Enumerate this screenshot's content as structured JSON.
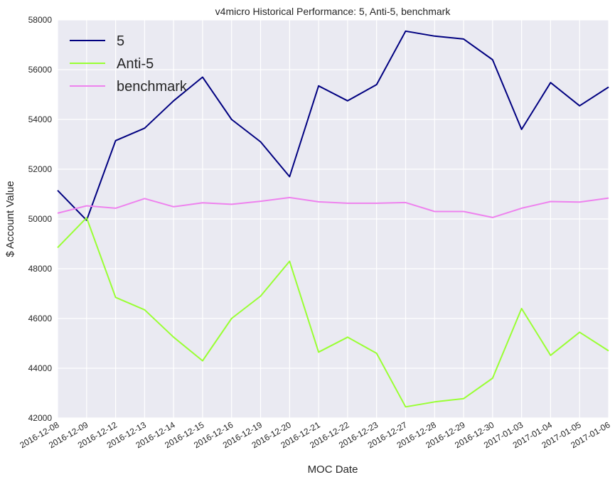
{
  "chart_data": {
    "type": "line",
    "title": "v4micro Historical Performance: 5, Anti-5, benchmark",
    "xlabel": "MOC Date",
    "ylabel": "$ Account Value",
    "ylim": [
      42000,
      58000
    ],
    "yticks": [
      "42000",
      "44000",
      "46000",
      "48000",
      "50000",
      "52000",
      "54000",
      "56000",
      "58000"
    ],
    "categories": [
      "2016-12-08",
      "2016-12-09",
      "2016-12-12",
      "2016-12-13",
      "2016-12-14",
      "2016-12-15",
      "2016-12-16",
      "2016-12-19",
      "2016-12-20",
      "2016-12-21",
      "2016-12-22",
      "2016-12-23",
      "2016-12-27",
      "2016-12-28",
      "2016-12-29",
      "2016-12-30",
      "2017-01-03",
      "2017-01-04",
      "2017-01-05",
      "2017-01-06"
    ],
    "grid": true,
    "legend_position": "top-left",
    "series": [
      {
        "name": "5",
        "color": "#000080",
        "values": [
          51150,
          49950,
          53150,
          53650,
          54750,
          55700,
          54000,
          53100,
          51700,
          55350,
          54750,
          55400,
          57550,
          57350,
          57230,
          56400,
          53600,
          55480,
          54550,
          55300
        ]
      },
      {
        "name": "Anti-5",
        "color": "#99ff33",
        "values": [
          48850,
          50050,
          46850,
          46350,
          45250,
          44300,
          46000,
          46900,
          48300,
          44650,
          45250,
          44600,
          42450,
          42650,
          42780,
          43600,
          46400,
          44520,
          45450,
          44700
        ]
      },
      {
        "name": "benchmark",
        "color": "#ee82ee",
        "values": [
          50230,
          50530,
          50430,
          50820,
          50490,
          50650,
          50590,
          50710,
          50860,
          50690,
          50630,
          50630,
          50660,
          50300,
          50300,
          50060,
          50430,
          50700,
          50680,
          50840
        ]
      }
    ]
  }
}
